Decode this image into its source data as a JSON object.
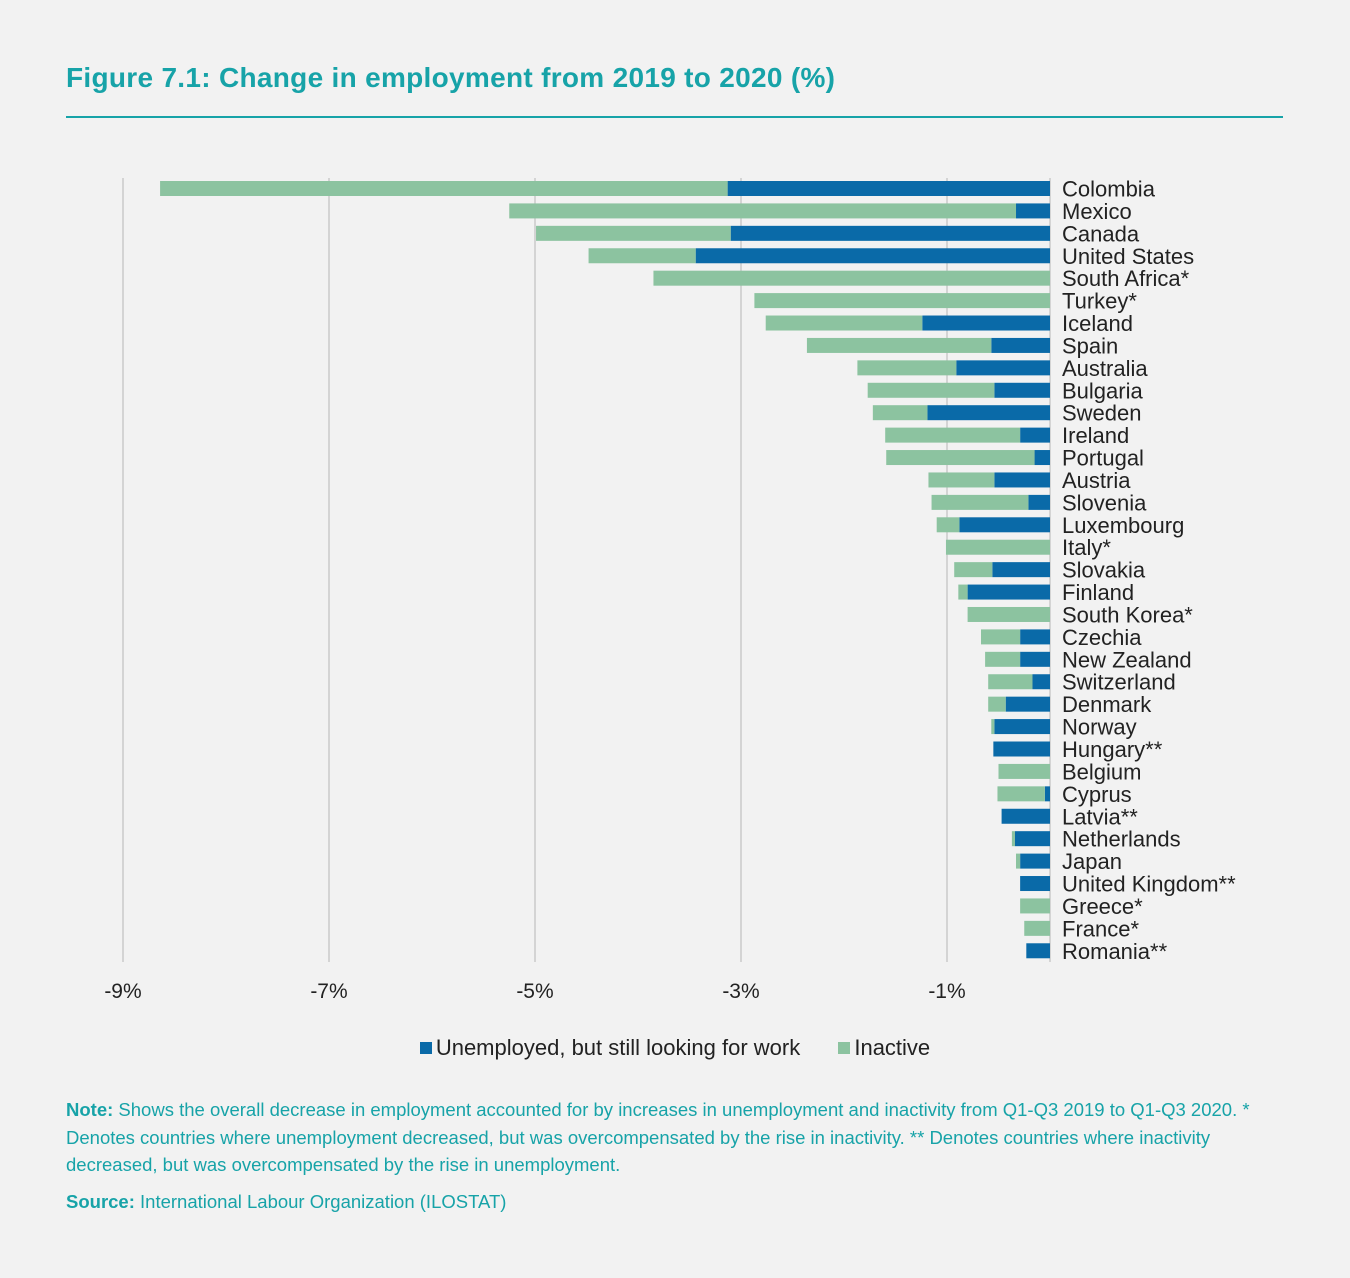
{
  "title": "Figure 7.1: Change in employment from 2019 to 2020 (%)",
  "chart_data": {
    "type": "bar",
    "orientation": "horizontal",
    "stacked": true,
    "title": "Figure 7.1: Change in employment from 2019 to 2020 (%)",
    "xlim": [
      -9.5,
      0
    ],
    "xticks": [
      -9,
      -7,
      -5,
      -3,
      -1
    ],
    "xtick_labels": [
      "-9%",
      "-7%",
      "-5%",
      "-3%",
      "-1%"
    ],
    "grid": "vertical",
    "legend_placement": "bottom",
    "colors": {
      "unemployed": "#0a6aa8",
      "inactive": "#8cc3a0"
    },
    "categories": [
      "Colombia",
      "Mexico",
      "Canada",
      "United States",
      "South Africa*",
      "Turkey*",
      "Iceland",
      "Spain",
      "Australia",
      "Bulgaria",
      "Sweden",
      "Ireland",
      "Portugal",
      "Austria",
      "Slovenia",
      "Luxembourg",
      "Italy*",
      "Slovakia",
      "Finland",
      "South Korea*",
      "Czechia",
      "New Zealand",
      "Switzerland",
      "Denmark",
      "Norway",
      "Hungary**",
      "Belgium",
      "Cyprus",
      "Latvia**",
      "Netherlands",
      "Japan",
      "United Kingdom**",
      "Greece*",
      "France*",
      "Romania**"
    ],
    "series": [
      {
        "name": "Unemployed, but still looking for work",
        "values": [
          -3.13,
          -0.33,
          -3.1,
          -3.44,
          0,
          0,
          -1.24,
          -0.57,
          -0.91,
          -0.54,
          -1.19,
          -0.29,
          -0.15,
          -0.54,
          -0.21,
          -0.88,
          0,
          -0.56,
          -0.8,
          0,
          -0.29,
          -0.29,
          -0.17,
          -0.43,
          -0.54,
          -0.55,
          0,
          -0.05,
          -0.47,
          -0.34,
          -0.29,
          -0.29,
          0,
          0,
          -0.23
        ]
      },
      {
        "name": "Inactive",
        "values": [
          -5.51,
          -4.92,
          -1.89,
          -1.04,
          -3.85,
          -2.87,
          -1.52,
          -1.79,
          -0.96,
          -1.23,
          -0.53,
          -1.31,
          -1.44,
          -0.64,
          -0.94,
          -0.22,
          -1.01,
          -0.37,
          -0.09,
          -0.8,
          -0.38,
          -0.34,
          -0.43,
          -0.17,
          -0.03,
          0,
          -0.5,
          -0.46,
          0,
          -0.03,
          -0.04,
          0,
          -0.29,
          -0.25,
          0
        ]
      }
    ]
  },
  "legend": {
    "unemployed": "Unemployed, but still looking for work",
    "inactive": "Inactive"
  },
  "note": {
    "label": "Note:",
    "text": " Shows the overall decrease in employment accounted for by increases in unemployment and inactivity from Q1-Q3 2019 to Q1-Q3 2020. * Denotes countries where unemployment decreased, but was overcompensated by the rise in inactivity. ** Denotes countries where inactivity decreased, but was overcompensated by the rise in unemployment."
  },
  "source": {
    "label": "Source:",
    "text": " International Labour Organization (ILOSTAT)"
  }
}
